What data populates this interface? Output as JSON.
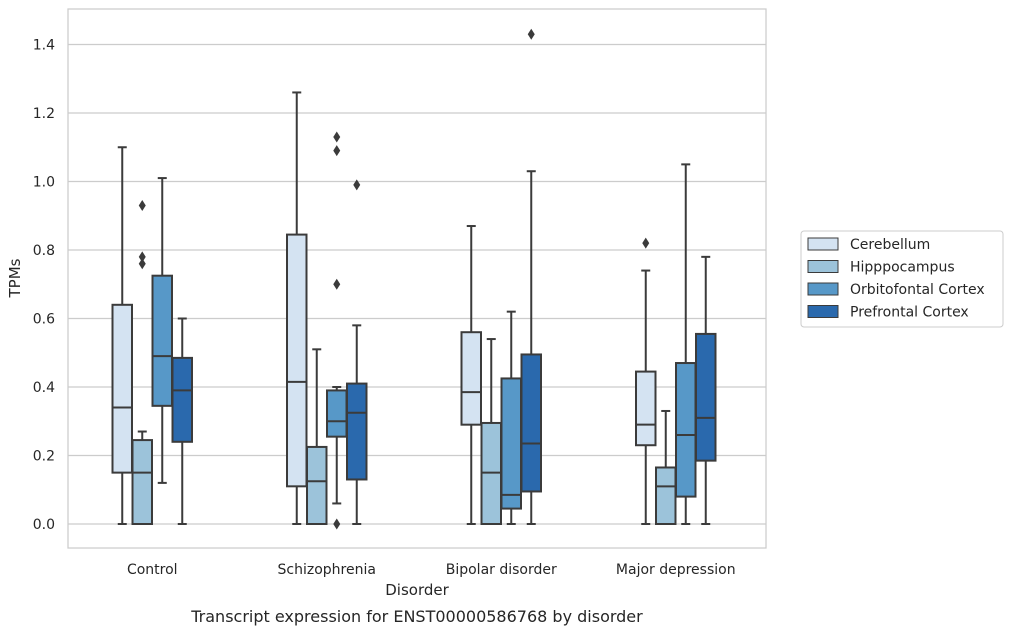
{
  "caption": "Transcript expression for ENST00000586768 by disorder",
  "chart_data": {
    "type": "boxplot",
    "xlabel": "Disorder",
    "ylabel": "TPMs",
    "ylim": [
      -0.07,
      1.5
    ],
    "yticks": [
      "0.0",
      "0.2",
      "0.4",
      "0.6",
      "0.8",
      "1.0",
      "1.2",
      "1.4"
    ],
    "grid": true,
    "legend_position": "right",
    "categories": [
      "Control",
      "Schizophrenia",
      "Bipolar disorder",
      "Major depression"
    ],
    "series": [
      {
        "name": "Cerebellum",
        "color": "#d4e3f2",
        "boxes": [
          {
            "whislo": 0.0,
            "q1": 0.15,
            "med": 0.34,
            "q3": 0.64,
            "whishi": 1.1,
            "fliers": []
          },
          {
            "whislo": 0.0,
            "q1": 0.11,
            "med": 0.415,
            "q3": 0.845,
            "whishi": 1.26,
            "fliers": []
          },
          {
            "whislo": 0.0,
            "q1": 0.29,
            "med": 0.385,
            "q3": 0.56,
            "whishi": 0.87,
            "fliers": []
          },
          {
            "whislo": 0.0,
            "q1": 0.23,
            "med": 0.29,
            "q3": 0.445,
            "whishi": 0.74,
            "fliers": [
              0.82
            ]
          }
        ]
      },
      {
        "name": "Hipppocampus",
        "color": "#9cc3da",
        "boxes": [
          {
            "whislo": 0.0,
            "q1": 0.0,
            "med": 0.15,
            "q3": 0.245,
            "whishi": 0.27,
            "fliers": [
              0.76,
              0.78,
              0.93
            ]
          },
          {
            "whislo": 0.0,
            "q1": 0.0,
            "med": 0.125,
            "q3": 0.225,
            "whishi": 0.51,
            "fliers": []
          },
          {
            "whislo": 0.0,
            "q1": 0.0,
            "med": 0.15,
            "q3": 0.295,
            "whishi": 0.54,
            "fliers": []
          },
          {
            "whislo": 0.0,
            "q1": 0.0,
            "med": 0.11,
            "q3": 0.165,
            "whishi": 0.33,
            "fliers": []
          }
        ]
      },
      {
        "name": "Orbitofontal Cortex",
        "color": "#5798c8",
        "boxes": [
          {
            "whislo": 0.12,
            "q1": 0.345,
            "med": 0.49,
            "q3": 0.725,
            "whishi": 1.01,
            "fliers": []
          },
          {
            "whislo": 0.06,
            "q1": 0.255,
            "med": 0.3,
            "q3": 0.39,
            "whishi": 0.4,
            "fliers": [
              0.0,
              0.7,
              1.09,
              1.13
            ]
          },
          {
            "whislo": 0.0,
            "q1": 0.045,
            "med": 0.085,
            "q3": 0.425,
            "whishi": 0.62,
            "fliers": []
          },
          {
            "whislo": 0.0,
            "q1": 0.08,
            "med": 0.26,
            "q3": 0.47,
            "whishi": 1.05,
            "fliers": []
          }
        ]
      },
      {
        "name": "Prefrontal Cortex",
        "color": "#2a69ad",
        "boxes": [
          {
            "whislo": 0.0,
            "q1": 0.24,
            "med": 0.39,
            "q3": 0.485,
            "whishi": 0.6,
            "fliers": []
          },
          {
            "whislo": 0.0,
            "q1": 0.13,
            "med": 0.325,
            "q3": 0.41,
            "whishi": 0.58,
            "fliers": [
              0.99
            ]
          },
          {
            "whislo": 0.0,
            "q1": 0.095,
            "med": 0.235,
            "q3": 0.495,
            "whishi": 1.03,
            "fliers": [
              1.43
            ]
          },
          {
            "whislo": 0.0,
            "q1": 0.185,
            "med": 0.31,
            "q3": 0.555,
            "whishi": 0.78,
            "fliers": []
          }
        ]
      }
    ]
  }
}
